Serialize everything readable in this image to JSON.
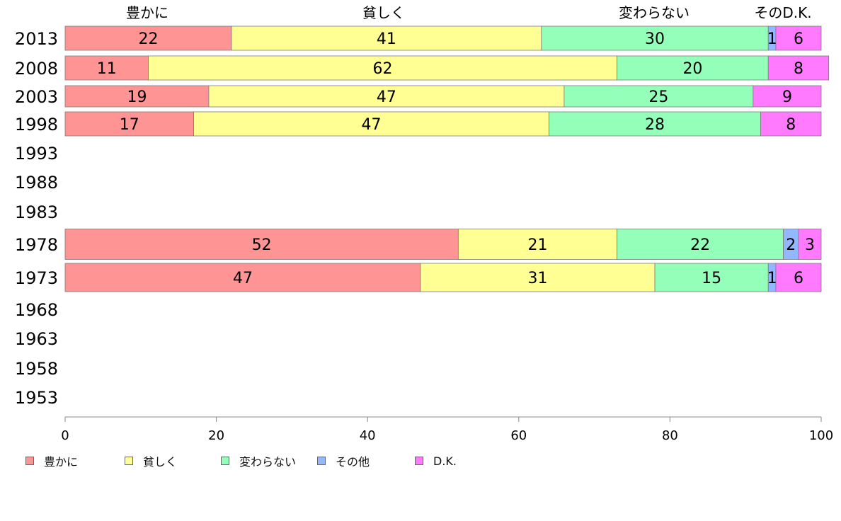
{
  "chart_data": {
    "type": "bar",
    "orientation": "horizontal",
    "stacked": true,
    "categories": [
      "2013",
      "2008",
      "2003",
      "1998",
      "1993",
      "1988",
      "1983",
      "1978",
      "1973",
      "1968",
      "1963",
      "1958",
      "1953"
    ],
    "series": [
      {
        "name": "豊かに",
        "color": "#ff9494",
        "values": [
          22,
          11,
          19,
          17,
          null,
          null,
          null,
          52,
          47,
          null,
          null,
          null,
          null
        ]
      },
      {
        "name": "貧しく",
        "color": "#ffff94",
        "values": [
          41,
          62,
          47,
          47,
          null,
          null,
          null,
          21,
          31,
          null,
          null,
          null,
          null
        ]
      },
      {
        "name": "変わらない",
        "color": "#94ffb8",
        "values": [
          30,
          20,
          25,
          28,
          null,
          null,
          null,
          22,
          15,
          null,
          null,
          null,
          null
        ]
      },
      {
        "name": "その他",
        "color": "#94b8ff",
        "values": [
          1,
          0,
          0,
          0,
          null,
          null,
          null,
          2,
          1,
          null,
          null,
          null,
          null
        ]
      },
      {
        "name": "D.K.",
        "color": "#ff7aff",
        "values": [
          6,
          8,
          9,
          8,
          null,
          null,
          null,
          3,
          6,
          null,
          null,
          null,
          null
        ]
      }
    ],
    "top_labels": [
      "豊かに",
      "貧しく",
      "変わらない",
      "そのD.K."
    ],
    "xlim": [
      0,
      100
    ],
    "xticks": [
      0,
      20,
      40,
      60,
      80,
      100
    ],
    "xlabel": "",
    "ylabel": "",
    "title": "",
    "grid": false,
    "legend_position": "bottom-left"
  }
}
